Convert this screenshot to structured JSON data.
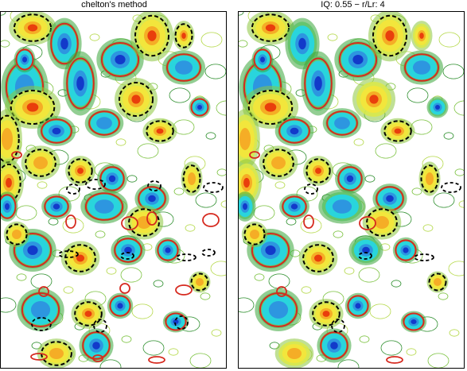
{
  "chart_data": [
    {
      "type": "heatmap",
      "title": "chelton's method",
      "xlabel": "",
      "ylabel": "",
      "legend": "none",
      "overlays": [
        {
          "name": "",
          "style": "dashed",
          "color": "#000000"
        },
        {
          "name": "",
          "style": "solid",
          "color": "#d62a1f"
        }
      ]
    },
    {
      "type": "heatmap",
      "title": "IQ: 0.55 − r/Lr:  4",
      "xlabel": "",
      "ylabel": "",
      "legend": "none",
      "overlays": [
        {
          "name": "",
          "style": "dashed",
          "color": "#000000"
        },
        {
          "name": "",
          "style": "solid",
          "color": "#d62a1f"
        }
      ]
    }
  ],
  "colors": {
    "cyclonic_core": "#1030c8",
    "cyclonic_mid": "#22d6e8",
    "neutral_green": "#3aa63a",
    "anticyclonic_mid": "#f5e63a",
    "anticyclonic_core": "#e8320a",
    "dashed_contour": "#000000",
    "solid_contour": "#d62a1f"
  }
}
